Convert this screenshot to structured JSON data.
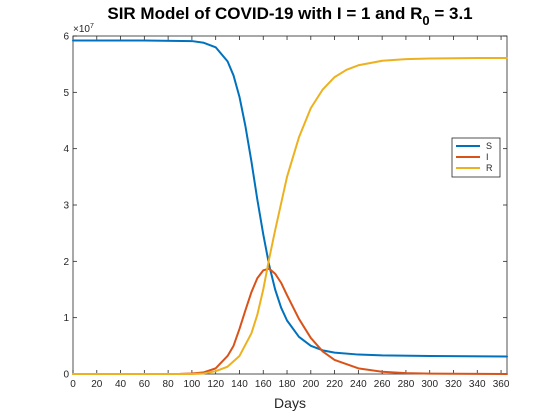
{
  "chart_data": {
    "type": "line",
    "title": "SIR Model of COVID-19 with I = 1 and R",
    "title_sub": "0",
    "title_tail": " = 3.1",
    "xlabel": "Days",
    "ylabel": "",
    "y_multiplier": "×10",
    "y_multiplier_exp": "7",
    "xlim": [
      0,
      365
    ],
    "ylim": [
      0,
      6
    ],
    "xticks": [
      0,
      20,
      40,
      60,
      80,
      100,
      120,
      140,
      160,
      180,
      200,
      220,
      240,
      260,
      280,
      300,
      320,
      340,
      360
    ],
    "yticks": [
      0,
      1,
      2,
      3,
      4,
      5,
      6
    ],
    "legend_position": "right",
    "grid": false,
    "series": [
      {
        "name": "S",
        "color": "#0072BD",
        "x": [
          0,
          60,
          100,
          110,
          120,
          130,
          135,
          140,
          145,
          150,
          155,
          160,
          165,
          170,
          175,
          180,
          190,
          200,
          210,
          220,
          240,
          260,
          300,
          365
        ],
        "y": [
          5.92,
          5.92,
          5.91,
          5.88,
          5.8,
          5.55,
          5.3,
          4.92,
          4.4,
          3.78,
          3.1,
          2.48,
          1.93,
          1.5,
          1.18,
          0.95,
          0.66,
          0.5,
          0.42,
          0.38,
          0.345,
          0.33,
          0.32,
          0.31
        ]
      },
      {
        "name": "I",
        "color": "#D95319",
        "x": [
          0,
          90,
          100,
          110,
          120,
          130,
          135,
          140,
          145,
          150,
          155,
          160,
          165,
          170,
          175,
          180,
          190,
          200,
          210,
          220,
          240,
          260,
          280,
          300,
          365
        ],
        "y": [
          0,
          0.002,
          0.01,
          0.03,
          0.1,
          0.32,
          0.5,
          0.8,
          1.13,
          1.45,
          1.7,
          1.84,
          1.87,
          1.78,
          1.62,
          1.4,
          0.98,
          0.64,
          0.4,
          0.25,
          0.1,
          0.04,
          0.015,
          0.006,
          0.0
        ]
      },
      {
        "name": "R",
        "color": "#EDB120",
        "x": [
          0,
          100,
          110,
          120,
          130,
          140,
          150,
          155,
          160,
          165,
          170,
          180,
          190,
          200,
          210,
          220,
          230,
          240,
          260,
          280,
          300,
          320,
          340,
          365
        ],
        "y": [
          0,
          0.0,
          0.01,
          0.05,
          0.13,
          0.32,
          0.72,
          1.05,
          1.5,
          2.05,
          2.55,
          3.5,
          4.2,
          4.72,
          5.05,
          5.27,
          5.4,
          5.48,
          5.56,
          5.59,
          5.6,
          5.605,
          5.61,
          5.61
        ]
      }
    ]
  }
}
